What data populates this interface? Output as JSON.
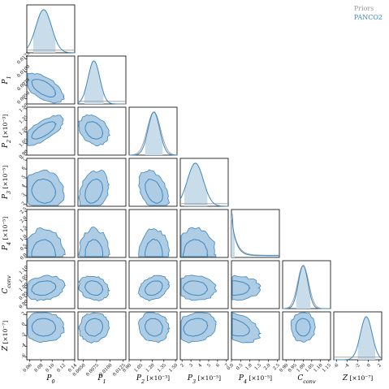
{
  "legend": {
    "priors_label": "Priors",
    "posterior_label": "PANCO2"
  },
  "colors": {
    "posterior_line": "#3d87bf",
    "posterior_fill": "#c8dcea",
    "contour_outer_fill": "#aecde4",
    "prior_line": "#9a9a9a",
    "axis": "#000000"
  },
  "chart_data": {
    "type": "corner",
    "title": "",
    "params": [
      {
        "label": "P",
        "sub": "0",
        "unit": "",
        "range": [
          0.055,
          0.14
        ],
        "ticks": [
          "0.06",
          "0.08",
          "0.10",
          "0.12",
          "0.14"
        ],
        "ytick_labels": []
      },
      {
        "label": "P",
        "sub": "1",
        "unit": "",
        "range": [
          0.004,
          0.013
        ],
        "ticks": [
          "0.0050",
          "0.0075",
          "0.0100",
          "0.0125"
        ],
        "ytick_labels": [
          "0.0125",
          "0.0100",
          "0.0075",
          "0.0050"
        ]
      },
      {
        "label": "P",
        "sub": "2",
        "unit": " [×10⁻³]",
        "range": [
          0.9,
          1.52
        ],
        "ticks": [
          "0.90",
          "1.05",
          "1.20",
          "1.35",
          "1.50"
        ],
        "ytick_labels": [
          "1.50",
          "1.35",
          "1.20",
          "1.05",
          "0.90"
        ]
      },
      {
        "label": "P",
        "sub": "3",
        "unit": " [×10⁻⁵]",
        "range": [
          1.8,
          7.2
        ],
        "ticks": [
          "2",
          "3",
          "4",
          "5",
          "6",
          "7"
        ],
        "ytick_labels": [
          "7",
          "6",
          "5",
          "4",
          "3",
          "2"
        ]
      },
      {
        "label": "P",
        "sub": "4",
        "unit": " [×10⁻⁵]",
        "range": [
          0,
          2.6
        ],
        "ticks": [
          "0.0",
          "0.5",
          "1.0",
          "1.5",
          "2.0",
          "2.5"
        ],
        "ytick_labels": [
          "2.5",
          "2.0",
          "1.5",
          "1.0",
          "0.5",
          "0.0"
        ]
      },
      {
        "label": "C",
        "sub": "conv",
        "unit": "",
        "range": [
          0.88,
          1.16
        ],
        "ticks": [
          "0.90",
          "0.95",
          "1.00",
          "1.05",
          "1.10",
          "1.15"
        ],
        "ytick_labels": [
          "1.10",
          "1.05",
          "1.00",
          "0.95",
          "0.90"
        ]
      },
      {
        "label": "Z",
        "sub": "",
        "unit": " [×10⁻⁷]",
        "range": [
          -6.5,
          2.5
        ],
        "ticks": [
          "-6",
          "-4",
          "-2",
          "0",
          "2"
        ],
        "ytick_labels": [
          "2",
          "0",
          "-2",
          "-4",
          "-6"
        ]
      }
    ],
    "marginals": [
      {
        "mean": 0.085,
        "sd": 0.014,
        "ci": [
          0.065,
          0.107
        ],
        "prior": "flat"
      },
      {
        "mean": 0.007,
        "sd": 0.0011,
        "ci": [
          0.0052,
          0.0088
        ],
        "prior": "flat"
      },
      {
        "mean": 1.22,
        "sd": 0.075,
        "ci": [
          1.1,
          1.34
        ],
        "prior": "gauss"
      },
      {
        "mean": 3.5,
        "sd": 0.9,
        "ci": [
          2.2,
          4.9
        ],
        "prior": "flat"
      },
      {
        "mean": 0.15,
        "sd": 0.55,
        "ci": [
          0.0,
          0.2
        ],
        "prior": "halfnormal"
      },
      {
        "mean": 1.0,
        "sd": 0.028,
        "ci": [
          0.955,
          1.045
        ],
        "prior": "gauss"
      },
      {
        "mean": -0.4,
        "sd": 1.1,
        "ci": [
          -2.1,
          1.3
        ],
        "prior": "flat"
      }
    ],
    "correlations": [
      [
        0
      ],
      [
        -0.6,
        0
      ],
      [
        0.7,
        -0.3,
        0
      ],
      [
        -0.1,
        0.3,
        -0.4,
        0
      ],
      [
        0.0,
        0.0,
        0.0,
        0.0,
        0
      ],
      [
        0.2,
        -0.2,
        0.3,
        -0.1,
        0.0,
        0
      ],
      [
        0.0,
        0.1,
        -0.1,
        0.2,
        -0.4,
        0.0,
        0
      ]
    ],
    "grid": false,
    "legend_position": "top-right"
  }
}
